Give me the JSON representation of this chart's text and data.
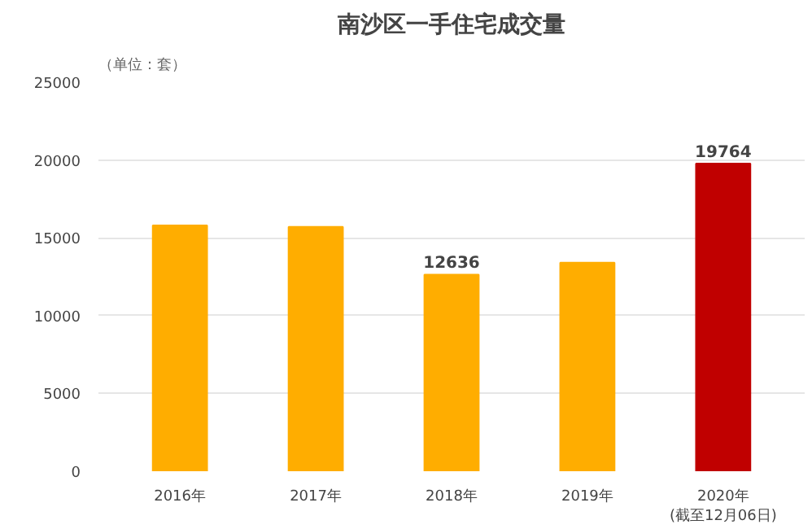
{
  "chart_data": {
    "type": "bar",
    "title": "南沙区一手住宅成交量",
    "ylabel": "（单位：套）",
    "categories": [
      "2016年",
      "2017年",
      "2018年",
      "2019年",
      "2020年\n(截至12月06日)"
    ],
    "values": [
      15800,
      15700,
      12636,
      13400,
      19764
    ],
    "colors": [
      "#ffad00",
      "#ffad00",
      "#ffad00",
      "#ffad00",
      "#c00000"
    ],
    "value_labels": [
      null,
      null,
      "12636",
      null,
      "19764"
    ],
    "ylim": [
      0,
      25000
    ],
    "yticks": [
      0,
      5000,
      10000,
      15000,
      20000,
      25000
    ],
    "grid": "y"
  }
}
